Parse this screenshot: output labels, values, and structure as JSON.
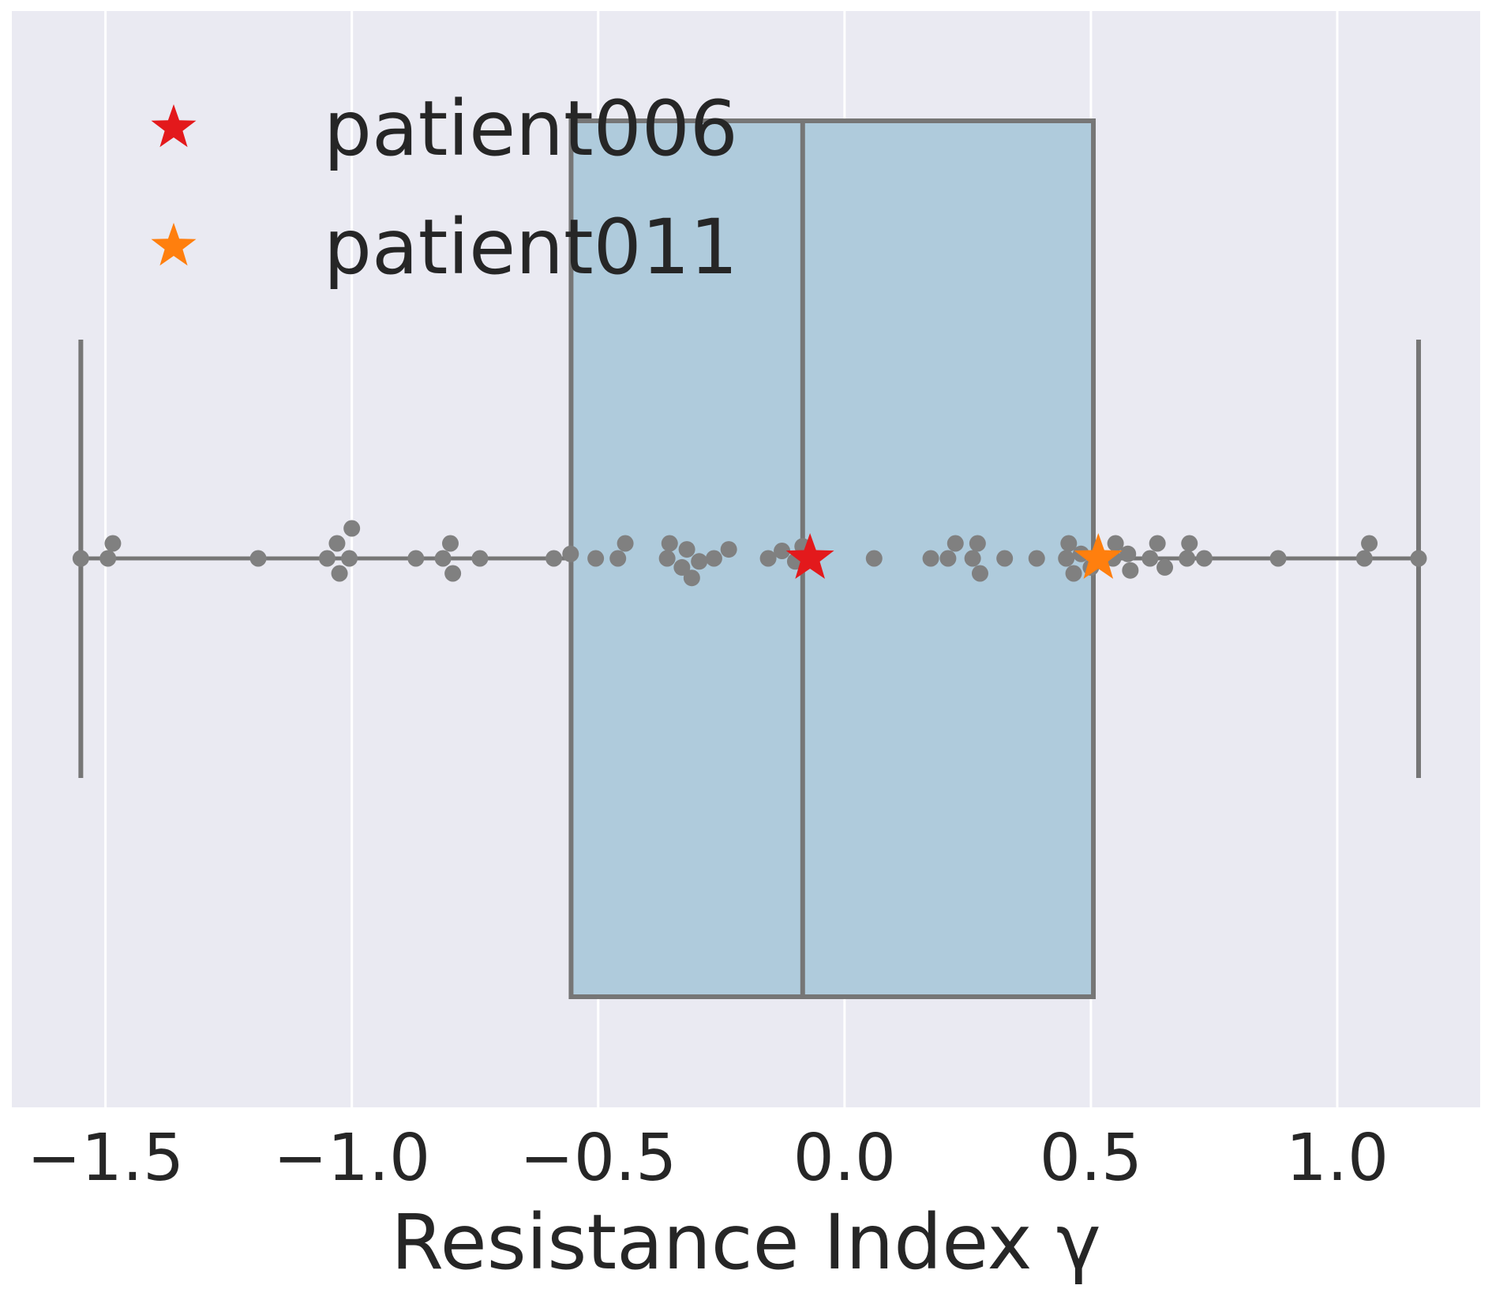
{
  "chart_data": {
    "type": "box",
    "orientation": "horizontal",
    "title": "",
    "xlabel": "Resistance Index γ",
    "ylabel": "",
    "xlim": [
      -1.69,
      1.29
    ],
    "x_ticks": [
      -1.5,
      -1.0,
      -0.5,
      0.0,
      0.5,
      1.0
    ],
    "x_tick_labels": [
      "−1.5",
      "−1.0",
      "−0.5",
      "0.0",
      "0.5",
      "1.0"
    ],
    "grid": "vertical",
    "legend_position": "top-left",
    "colors": {
      "background": "#eaeaf2",
      "grid": "#ffffff",
      "box_fill": "#afcbdc",
      "box_edge": "#767676",
      "point": "#808080"
    },
    "box": {
      "min": -1.55,
      "q1": -0.555,
      "median": -0.085,
      "q3": 0.505,
      "max": 1.165
    },
    "points": [
      {
        "x": -1.55,
        "offset": 0
      },
      {
        "x": -1.495,
        "offset": 0
      },
      {
        "x": -1.485,
        "offset": -1
      },
      {
        "x": -1.19,
        "offset": 0
      },
      {
        "x": -1.05,
        "offset": 0
      },
      {
        "x": -1.03,
        "offset": -1
      },
      {
        "x": -1.025,
        "offset": 1
      },
      {
        "x": -1.005,
        "offset": 0
      },
      {
        "x": -1.0,
        "offset": -2
      },
      {
        "x": -0.87,
        "offset": 0
      },
      {
        "x": -0.815,
        "offset": 0
      },
      {
        "x": -0.8,
        "offset": -1
      },
      {
        "x": -0.795,
        "offset": 1
      },
      {
        "x": -0.74,
        "offset": 0
      },
      {
        "x": -0.59,
        "offset": 0
      },
      {
        "x": -0.556,
        "offset": -0.3
      },
      {
        "x": -0.505,
        "offset": 0
      },
      {
        "x": -0.46,
        "offset": 0
      },
      {
        "x": -0.445,
        "offset": -1
      },
      {
        "x": -0.36,
        "offset": 0
      },
      {
        "x": -0.355,
        "offset": -1
      },
      {
        "x": -0.33,
        "offset": 0.6
      },
      {
        "x": -0.32,
        "offset": -0.6
      },
      {
        "x": -0.31,
        "offset": 1.3
      },
      {
        "x": -0.295,
        "offset": 0.2
      },
      {
        "x": -0.265,
        "offset": 0
      },
      {
        "x": -0.235,
        "offset": -0.6
      },
      {
        "x": -0.155,
        "offset": 0
      },
      {
        "x": -0.127,
        "offset": -0.5
      },
      {
        "x": -0.1,
        "offset": 0.2
      },
      {
        "x": -0.085,
        "offset": -0.8
      },
      {
        "x": 0.06,
        "offset": 0
      },
      {
        "x": 0.175,
        "offset": 0
      },
      {
        "x": 0.21,
        "offset": 0
      },
      {
        "x": 0.225,
        "offset": -1
      },
      {
        "x": 0.26,
        "offset": 0
      },
      {
        "x": 0.27,
        "offset": -1
      },
      {
        "x": 0.275,
        "offset": 1
      },
      {
        "x": 0.325,
        "offset": 0
      },
      {
        "x": 0.39,
        "offset": 0
      },
      {
        "x": 0.45,
        "offset": 0
      },
      {
        "x": 0.455,
        "offset": -1
      },
      {
        "x": 0.465,
        "offset": 1
      },
      {
        "x": 0.48,
        "offset": -0.3
      },
      {
        "x": 0.5,
        "offset": 0.6
      },
      {
        "x": 0.545,
        "offset": 0
      },
      {
        "x": 0.55,
        "offset": -1
      },
      {
        "x": 0.575,
        "offset": -0.3
      },
      {
        "x": 0.58,
        "offset": 0.8
      },
      {
        "x": 0.62,
        "offset": 0
      },
      {
        "x": 0.635,
        "offset": -1
      },
      {
        "x": 0.65,
        "offset": 0.6
      },
      {
        "x": 0.695,
        "offset": 0
      },
      {
        "x": 0.7,
        "offset": -1
      },
      {
        "x": 0.73,
        "offset": 0
      },
      {
        "x": 0.88,
        "offset": 0
      },
      {
        "x": 1.055,
        "offset": 0
      },
      {
        "x": 1.065,
        "offset": -1
      },
      {
        "x": 1.165,
        "offset": 0
      }
    ],
    "highlights": [
      {
        "name": "patient006",
        "x": -0.07,
        "color": "#e3191c"
      },
      {
        "name": "patient011",
        "x": 0.515,
        "color": "#ff7f0e"
      }
    ]
  }
}
